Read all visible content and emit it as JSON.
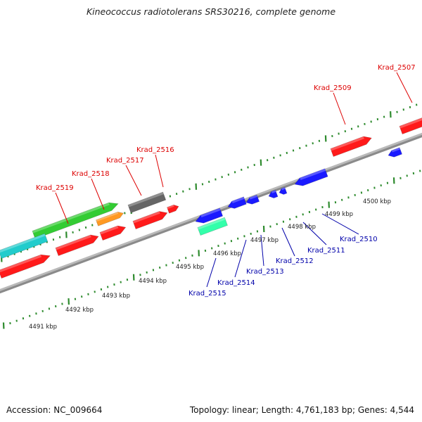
{
  "title": "Kineococcus radiotolerans SRS30216, complete genome",
  "footer": {
    "accession": "Accession: NC_009664",
    "summary": "Topology: linear; Length: 4,761,183 bp; Genes: 4,544"
  },
  "colors": {
    "backbone": "#8a8a8a",
    "ticks": "#2e8b2e",
    "forward_label": "#dd0000",
    "reverse_label": "#0000aa",
    "leader_forward": "#dd0000",
    "leader_reverse": "#0000aa"
  },
  "scale_labels": [
    {
      "text": "4491 kbp"
    },
    {
      "text": "4492 kbp"
    },
    {
      "text": "4493 kbp"
    },
    {
      "text": "4494 kbp"
    },
    {
      "text": "4495 kbp"
    },
    {
      "text": "4496 kbp"
    },
    {
      "text": "4497 kbp"
    },
    {
      "text": "4498 kbp"
    },
    {
      "text": "4499 kbp"
    },
    {
      "text": "4500 kbp"
    }
  ],
  "forward_gene_labels": [
    "Krad_2519",
    "Krad_2518",
    "Krad_2517",
    "Krad_2516",
    "Krad_2509",
    "Krad_2507"
  ],
  "reverse_gene_labels": [
    "Krad_2515",
    "Krad_2514",
    "Krad_2513",
    "Krad_2512",
    "Krad_2511",
    "Krad_2510"
  ],
  "genes": [
    {
      "strand": "+",
      "color": "#ff1a1a",
      "name": "forward-gene-a"
    },
    {
      "strand": "+",
      "color": "#33cc33",
      "name": "forward-gene-krad-2519"
    },
    {
      "strand": "+",
      "color": "#ff9922",
      "name": "forward-gene-krad-2518"
    },
    {
      "strand": "+",
      "color": "#666666",
      "name": "forward-gene-krad-2517"
    },
    {
      "strand": "+",
      "color": "#ff1a1a",
      "name": "forward-gene-krad-2516"
    },
    {
      "strand": "+",
      "color": "#ff1a1a",
      "name": "forward-gene-krad-2509"
    },
    {
      "strand": "+",
      "color": "#ff1a1a",
      "name": "forward-gene-krad-2507"
    },
    {
      "strand": "+",
      "color": "#22cccc",
      "name": "forward-gene-cyan"
    },
    {
      "strand": "+",
      "color": "#ff1a1a",
      "name": "forward-gene-b"
    },
    {
      "strand": "+",
      "color": "#ff1a1a",
      "name": "forward-gene-c"
    },
    {
      "strand": "+",
      "color": "#ff1a1a",
      "name": "forward-gene-d"
    },
    {
      "strand": "-",
      "color": "#1a1aff",
      "name": "reverse-gene-a"
    },
    {
      "strand": "-",
      "color": "#1a1aff",
      "name": "reverse-gene-b"
    },
    {
      "strand": "-",
      "color": "#1a1aff",
      "name": "reverse-gene-c"
    },
    {
      "strand": "-",
      "color": "#1a1aff",
      "name": "reverse-gene-d"
    },
    {
      "strand": "-",
      "color": "#1a1aff",
      "name": "reverse-gene-e"
    },
    {
      "strand": "-",
      "color": "#1a1aff",
      "name": "reverse-gene-f"
    },
    {
      "strand": "-",
      "color": "#1a1aff",
      "name": "reverse-gene-g"
    },
    {
      "strand": "-",
      "color": "#33ffaa",
      "name": "reverse-gene-krad-2515"
    }
  ]
}
